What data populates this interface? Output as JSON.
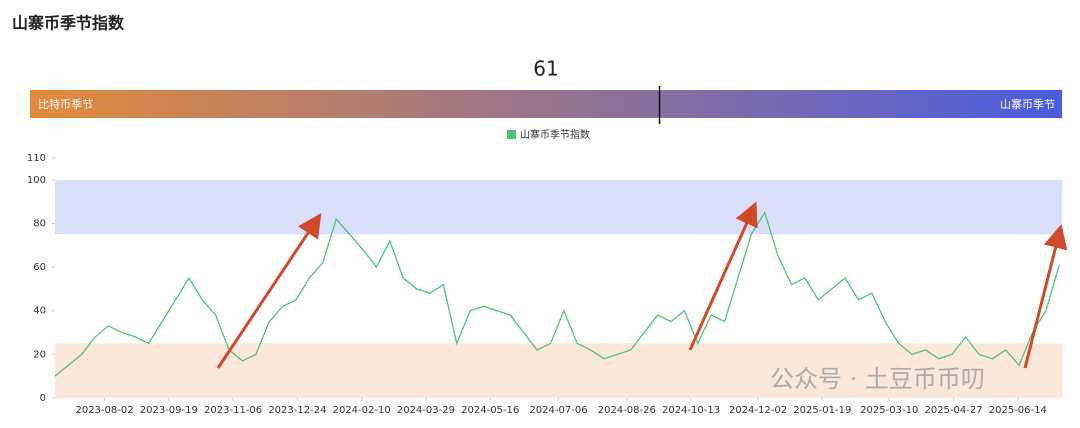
{
  "title": "山寨币季节指数",
  "gauge": {
    "value": 61,
    "range": [
      0,
      100
    ],
    "left_label": "比特币季节",
    "right_label": "山寨币季节",
    "left_color": "#e38b3a",
    "right_color": "#4a5de0"
  },
  "watermark": "公众号 · 土豆币币叨",
  "chart_data": {
    "type": "line",
    "series": [
      {
        "name": "山寨币季节指数",
        "color": "#4cc47a",
        "values": [
          10,
          15,
          20,
          28,
          33,
          30,
          28,
          25,
          35,
          45,
          55,
          45,
          38,
          22,
          17,
          20,
          35,
          42,
          45,
          55,
          62,
          82,
          75,
          68,
          60,
          72,
          55,
          50,
          48,
          52,
          25,
          40,
          42,
          40,
          38,
          30,
          22,
          25,
          40,
          25,
          22,
          18,
          20,
          22,
          30,
          38,
          35,
          40,
          25,
          38,
          35,
          55,
          75,
          85,
          65,
          52,
          55,
          45,
          50,
          55,
          45,
          48,
          35,
          25,
          20,
          22,
          18,
          20,
          28,
          20,
          18,
          22,
          15,
          30,
          40,
          61
        ]
      }
    ],
    "x": [
      "2023-06-26",
      "2023-07-06",
      "2023-07-16",
      "2023-07-26",
      "2023-08-05",
      "2023-08-15",
      "2023-08-25",
      "2023-09-04",
      "2023-09-14",
      "2023-09-24",
      "2023-10-04",
      "2023-10-14",
      "2023-10-24",
      "2023-11-03",
      "2023-11-13",
      "2023-11-23",
      "2023-12-03",
      "2023-12-13",
      "2023-12-23",
      "2024-01-02",
      "2024-01-12",
      "2024-01-22",
      "2024-02-01",
      "2024-02-11",
      "2024-02-21",
      "2024-03-02",
      "2024-03-12",
      "2024-03-22",
      "2024-04-01",
      "2024-04-11",
      "2024-04-21",
      "2024-05-01",
      "2024-05-11",
      "2024-05-21",
      "2024-05-31",
      "2024-06-10",
      "2024-06-20",
      "2024-06-30",
      "2024-07-10",
      "2024-07-20",
      "2024-07-30",
      "2024-08-09",
      "2024-08-19",
      "2024-08-29",
      "2024-09-08",
      "2024-09-18",
      "2024-09-28",
      "2024-10-08",
      "2024-10-18",
      "2024-10-28",
      "2024-11-07",
      "2024-11-17",
      "2024-11-27",
      "2024-12-07",
      "2024-12-17",
      "2024-12-27",
      "2025-01-06",
      "2025-01-16",
      "2025-01-26",
      "2025-02-05",
      "2025-02-15",
      "2025-02-25",
      "2025-03-07",
      "2025-03-17",
      "2025-03-27",
      "2025-04-06",
      "2025-04-16",
      "2025-04-26",
      "2025-05-06",
      "2025-05-16",
      "2025-05-26",
      "2025-06-05",
      "2025-06-15",
      "2025-06-25",
      "2025-07-05",
      "2025-07-15"
    ],
    "xlim": [
      "2023-06-26",
      "2025-07-17"
    ],
    "xticks": [
      "2023-08-02",
      "2023-09-19",
      "2023-11-06",
      "2023-12-24",
      "2024-02-10",
      "2024-03-29",
      "2024-05-16",
      "2024-07-06",
      "2024-08-26",
      "2024-10-13",
      "2024-12-02",
      "2025-01-19",
      "2025-03-10",
      "2025-04-27",
      "2025-06-14"
    ],
    "ylim": [
      0,
      110
    ],
    "yticks": [
      0,
      20,
      40,
      60,
      80,
      100,
      110
    ],
    "bands": [
      {
        "from": 75,
        "to": 100,
        "color": "#dbe0fa"
      },
      {
        "from": 0,
        "to": 25,
        "color": "#fbe8da"
      }
    ]
  }
}
